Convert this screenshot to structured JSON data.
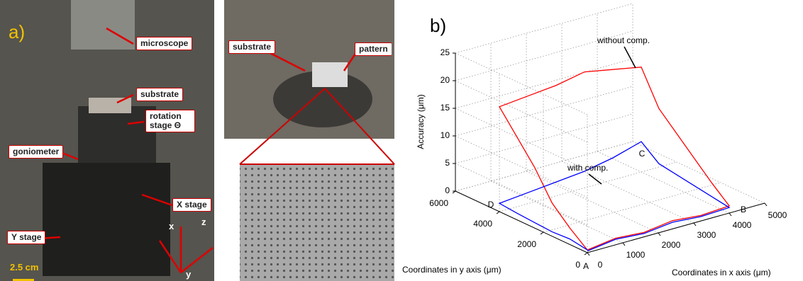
{
  "panel_a": {
    "label": "a)",
    "microscope": "microscope",
    "substrate": "substrate",
    "rotation": "rotation stage Θ",
    "goniometer": "goniometer",
    "x_stage": "X stage",
    "y_stage": "Y stage",
    "scale_bar": "2.5 cm",
    "axes": [
      "x",
      "y",
      "z"
    ],
    "top_substrate": "substrate",
    "top_pattern": "pattern"
  },
  "figure_b": {
    "type": "line3d",
    "label": "b)",
    "zlabel": "Accuracy (μm)",
    "xlabel": "Coordinates in x axis (μm)",
    "ylabel": "Coordinates in y axis (μm)",
    "xlim": [
      0,
      5000
    ],
    "xticks": [
      0,
      1000,
      2000,
      3000,
      4000,
      5000
    ],
    "ylim": [
      0,
      6000
    ],
    "yticks": [
      0,
      2000,
      4000,
      6000
    ],
    "zlim": [
      0,
      25
    ],
    "zticks": [
      0,
      5,
      10,
      15,
      20,
      25
    ],
    "grid": true,
    "annotations": [
      "without comp.",
      "with comp."
    ],
    "corners": [
      "A",
      "B",
      "C",
      "D"
    ],
    "series": [
      {
        "color": "#ff0000",
        "x": [
          0,
          800,
          1600,
          2400,
          3200,
          4000,
          4000,
          4000,
          4000,
          4000,
          4000,
          3200,
          2400,
          1600,
          800,
          0,
          0,
          0,
          0,
          0,
          0
        ],
        "y": [
          0,
          0,
          0,
          0,
          0,
          0,
          800,
          1600,
          2400,
          3200,
          4000,
          4000,
          4000,
          4000,
          4000,
          4000,
          3200,
          2400,
          1600,
          800,
          0
        ],
        "z": [
          0.5,
          1.2,
          0.8,
          1.5,
          1.0,
          1.3,
          4,
          7,
          10,
          13,
          19,
          20,
          21,
          20,
          19.5,
          19,
          15,
          11,
          6,
          3,
          0.5
        ]
      },
      {
        "color": "#0000ff",
        "x": [
          0,
          800,
          1600,
          2400,
          3200,
          4000,
          4000,
          4000,
          4000,
          4000,
          4000,
          3200,
          2400,
          1600,
          800,
          0,
          0,
          0,
          0,
          0,
          0
        ],
        "y": [
          0,
          0,
          0,
          0,
          0,
          0,
          800,
          1600,
          2400,
          3200,
          4000,
          4000,
          4000,
          4000,
          4000,
          4000,
          3200,
          2400,
          1600,
          800,
          0
        ],
        "z": [
          0.3,
          1,
          0.6,
          1.2,
          0.8,
          1.0,
          1.5,
          2,
          2.5,
          3,
          5.5,
          4,
          3,
          2.5,
          2,
          1.5,
          1.2,
          1,
          0.8,
          1,
          0.5
        ]
      }
    ]
  }
}
